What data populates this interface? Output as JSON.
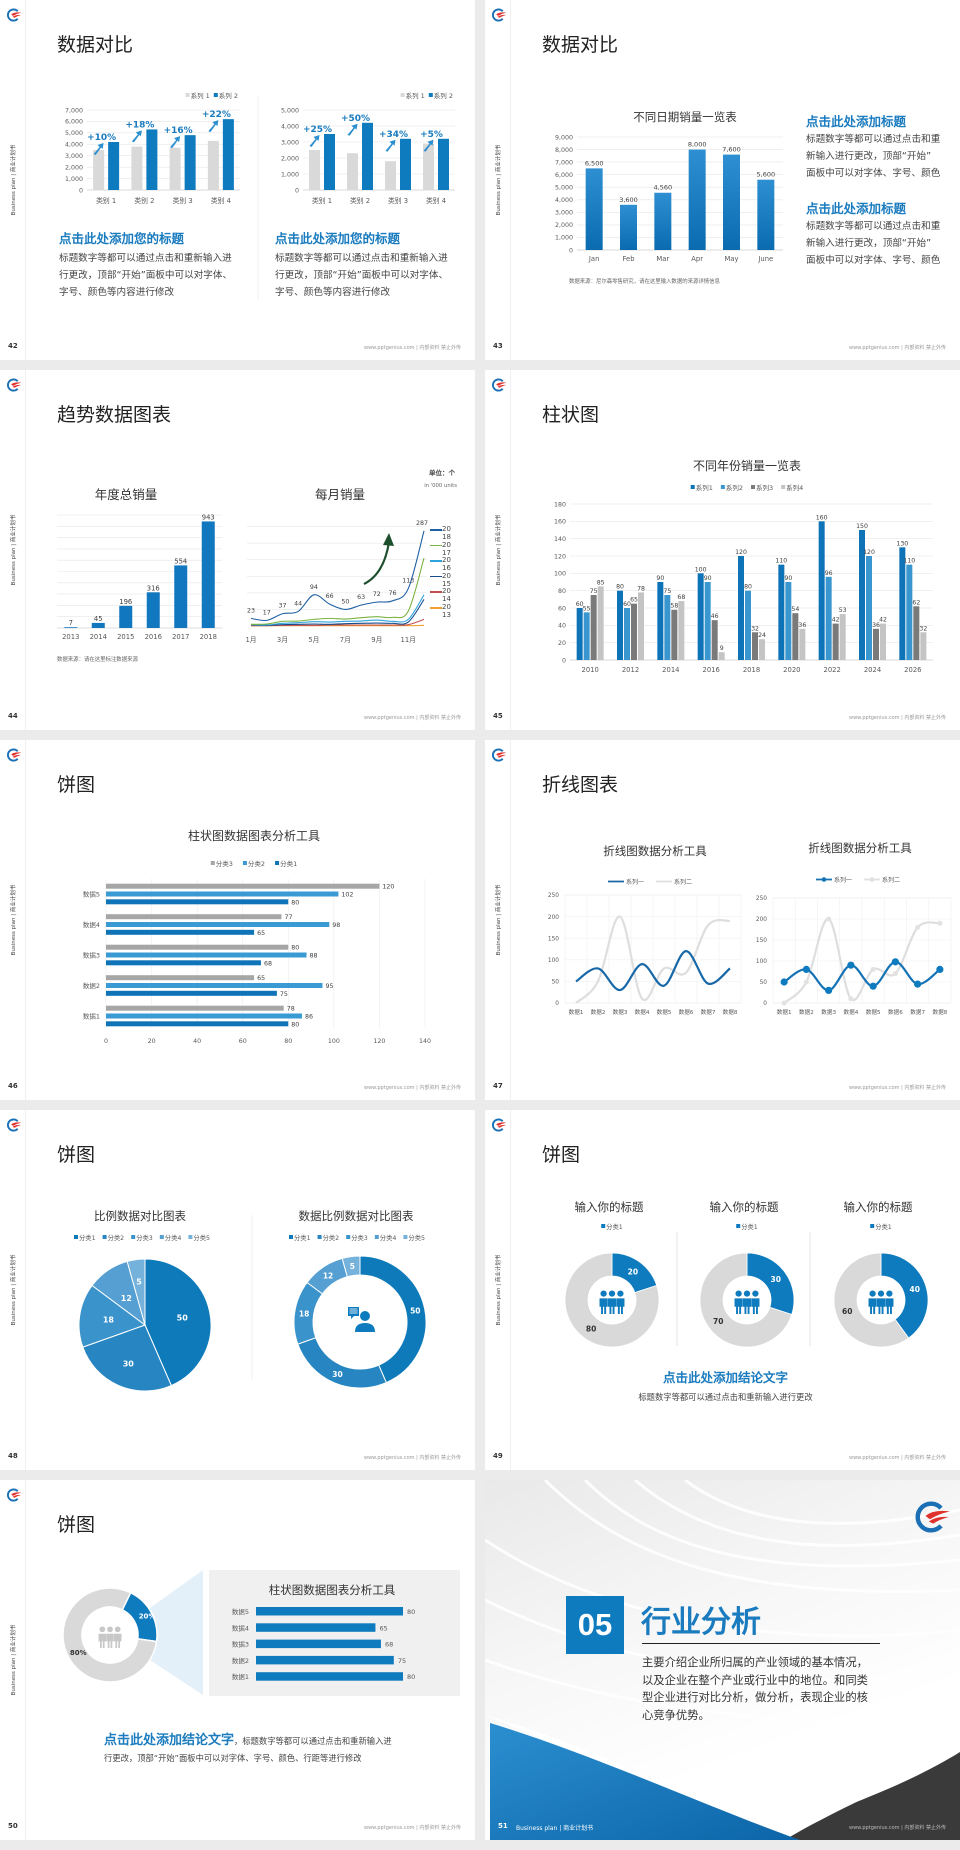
{
  "common": {
    "side_label": "Business plan | 商业计划书",
    "footer": "www.pptgenius.com | 内部资料 禁止外传"
  },
  "colors": {
    "accent": "#0f7bbf",
    "heading_blue": "#1a7bbf",
    "bar_gray": "#d9d9d9",
    "dark": "#3a3a3a"
  },
  "slides": [
    {
      "page": "42",
      "title": "数据对比",
      "blocks": [
        {
          "heading": "点击此处添加您的标题",
          "lines": [
            "标题数字等都可以通过点击和重新输入进",
            "行更改，顶部“开始”面板中可以对字体、",
            "字号、颜色等内容进行修改"
          ]
        },
        {
          "heading": "点击此处添加您的标题",
          "lines": [
            "标题数字等都可以通过点击和重新输入进",
            "行更改，顶部“开始”面板中可以对字体、",
            "字号、颜色等内容进行修改"
          ]
        }
      ]
    },
    {
      "page": "43",
      "title": "数据对比",
      "source": "数据来源：尼尔森零售研究，请在这里输入数据的来源详情信息",
      "blocks": [
        {
          "heading": "点击此处添加标题",
          "lines": [
            "标题数字等都可以通过点击和重",
            "新输入进行更改，顶部“开始”",
            "面板中可以对字体、字号、颜色"
          ]
        },
        {
          "heading": "点击此处添加标题",
          "lines": [
            "标题数字等都可以通过点击和重",
            "新输入进行更改，顶部“开始”",
            "面板中可以对字体、字号、颜色"
          ]
        }
      ]
    },
    {
      "page": "44",
      "title": "趋势数据图表",
      "unit": "单位：个",
      "unit_en": "in '000 units",
      "source": "数据来源：请在这里标注数据来源"
    },
    {
      "page": "45",
      "title": "柱状图"
    },
    {
      "page": "46",
      "title": "饼图"
    },
    {
      "page": "47",
      "title": "折线图表"
    },
    {
      "page": "48",
      "title": "饼图"
    },
    {
      "page": "49",
      "title": "饼图",
      "conclusion": "点击此处添加结论文字",
      "body": "标题数字等都可以通过点击和重新输入进行更改"
    },
    {
      "page": "50",
      "title": "饼图",
      "conclusion": "点击此处添加结论文字",
      "body_1": "，标题数字等都可以通过点击和重新输入进",
      "body_2": "行更改，顶部“开始”面板中可以对字体、字号、颜色、行距等进行修改"
    },
    {
      "page": "51",
      "number": "05",
      "title": "行业分析",
      "lines": [
        "主要介绍企业所归属的产业领域的基本情况，",
        "以及企业在整个产业或行业中的地位。和同类",
        "型企业进行对比分析，做分析，表现企业的核",
        "心竞争优势。"
      ],
      "footer_left": "Business plan | 商业计划书"
    }
  ],
  "chart_data": [
    {
      "type": "bar",
      "categories": [
        "类别 1",
        "类别 2",
        "类别 3",
        "类别 4"
      ],
      "series": [
        {
          "name": "系列 1",
          "values": [
            3500,
            3800,
            3700,
            4300
          ]
        },
        {
          "name": "系列 2",
          "values": [
            4200,
            5300,
            4800,
            6200
          ]
        }
      ],
      "ylim": [
        0,
        7000
      ],
      "yticks": [
        "0",
        "1,000",
        "2,000",
        "3,000",
        "4,000",
        "5,000",
        "6,000",
        "7,000"
      ],
      "annotations": [
        "+10%",
        "+18%",
        "+16%",
        "+22%"
      ],
      "legend": "top-right",
      "grid": true
    },
    {
      "type": "bar",
      "categories": [
        "类别 1",
        "类别 2",
        "类别 3",
        "类别 4"
      ],
      "series": [
        {
          "name": "系列 1",
          "values": [
            2500,
            2300,
            1800,
            2900
          ]
        },
        {
          "name": "系列 2",
          "values": [
            3500,
            4200,
            3200,
            3200
          ]
        }
      ],
      "ylim": [
        0,
        5000
      ],
      "yticks": [
        "0",
        "1,000",
        "2,000",
        "3,000",
        "4,000",
        "5,000"
      ],
      "annotations": [
        "+25%",
        "+50%",
        "+34%",
        "+5%"
      ],
      "legend": "top-right",
      "grid": true
    },
    {
      "type": "bar",
      "title": "不同日期销量一览表",
      "categories": [
        "Jan",
        "Feb",
        "Mar",
        "Apr",
        "May",
        "June"
      ],
      "series": [
        {
          "values": [
            6500,
            3600,
            4560,
            8000,
            7600,
            5600
          ]
        }
      ],
      "data_labels": [
        "6,500",
        "3,600",
        "4,560",
        "8,000",
        "7,600",
        "5,600"
      ],
      "ylim": [
        0,
        9000
      ],
      "yticks": [
        "0",
        "1,000",
        "2,000",
        "3,000",
        "4,000",
        "5,000",
        "6,000",
        "7,000",
        "8,000",
        "9,000"
      ],
      "grid": true
    },
    {
      "type": "bar",
      "title": "年度总销量",
      "categories": [
        "2013",
        "2014",
        "2015",
        "2016",
        "2017",
        "2018"
      ],
      "series": [
        {
          "values": [
            7,
            45,
            196,
            316,
            554,
            943
          ]
        }
      ],
      "ylim": [
        0,
        1000
      ],
      "grid": true
    },
    {
      "type": "line",
      "title": "每月销量",
      "x_labels": [
        "1月",
        "3月",
        "5月",
        "7月",
        "9月",
        "11月"
      ],
      "series": [
        {
          "name": "2018",
          "color": "#1f5fa3",
          "values": [
            23,
            17,
            37,
            44,
            94,
            66,
            50,
            63,
            72,
            76,
            113,
            287
          ]
        },
        {
          "name": "2017",
          "color": "#7cb342",
          "values": [
            5,
            6,
            14,
            15,
            20,
            23,
            21,
            25,
            28,
            26,
            45,
            205
          ]
        },
        {
          "name": "2016",
          "color": "#2ea3dc",
          "values": [
            4,
            3,
            8,
            10,
            13,
            12,
            14,
            15,
            18,
            14,
            20,
            94
          ]
        },
        {
          "name": "2015",
          "color": "#1a4c8c",
          "values": [
            3,
            2,
            4,
            5,
            6,
            5,
            7,
            8,
            9,
            8,
            12,
            80
          ]
        },
        {
          "name": "2014",
          "color": "#c0504d",
          "values": [
            1,
            1,
            2,
            2,
            2,
            3,
            3,
            3,
            3,
            3,
            4,
            20
          ]
        },
        {
          "name": "2013",
          "color": "#f0a030",
          "values": [
            1,
            1,
            1,
            1,
            1,
            1,
            1,
            1,
            1,
            1,
            1,
            2
          ]
        }
      ],
      "ylim": [
        0,
        350
      ],
      "grid": true,
      "legend": "right"
    },
    {
      "type": "bar",
      "title": "不同年份销量一览表",
      "categories": [
        "2010",
        "2012",
        "2014",
        "2016",
        "2018",
        "2020",
        "2022",
        "2024",
        "2026"
      ],
      "series": [
        {
          "name": "系列1",
          "values": [
            60,
            80,
            90,
            100,
            120,
            110,
            160,
            150,
            130
          ]
        },
        {
          "name": "系列2",
          "values": [
            55,
            60,
            75,
            90,
            80,
            90,
            96,
            120,
            110
          ]
        },
        {
          "name": "系列3",
          "values": [
            75,
            65,
            58,
            46,
            32,
            54,
            42,
            36,
            62
          ]
        },
        {
          "name": "系列4",
          "values": [
            85,
            78,
            68,
            9,
            24,
            36,
            53,
            42,
            32
          ]
        }
      ],
      "ylim": [
        0,
        180
      ],
      "yticks": [
        "0",
        "20",
        "40",
        "60",
        "80",
        "100",
        "120",
        "140",
        "160",
        "180"
      ],
      "legend": "top",
      "grid": true
    },
    {
      "type": "bar",
      "orientation": "horizontal",
      "title": "柱状图数据图表分析工具",
      "categories": [
        "数据1",
        "数据2",
        "数据3",
        "数据4",
        "数据5"
      ],
      "series": [
        {
          "name": "分类3",
          "values": [
            78,
            65,
            80,
            77,
            120
          ]
        },
        {
          "name": "分类2",
          "values": [
            86,
            95,
            88,
            98,
            102
          ]
        },
        {
          "name": "分类1",
          "values": [
            80,
            75,
            68,
            65,
            80
          ]
        }
      ],
      "xlim": [
        0,
        140
      ],
      "xticks": [
        "0",
        "20",
        "40",
        "60",
        "80",
        "100",
        "120",
        "140"
      ],
      "legend": "top",
      "grid": true
    },
    {
      "type": "line",
      "title": "折线图数据分析工具",
      "categories": [
        "数据1",
        "数据2",
        "数据3",
        "数据4",
        "数据5",
        "数据6",
        "数据7",
        "数据8"
      ],
      "series": [
        {
          "name": "系列一",
          "values": [
            50,
            80,
            30,
            90,
            40,
            120,
            45,
            80
          ]
        },
        {
          "name": "系列二",
          "values": [
            0,
            50,
            200,
            10,
            80,
            70,
            180,
            190
          ]
        }
      ],
      "ylim": [
        0,
        250
      ],
      "yticks": [
        "0",
        "50",
        "100",
        "150",
        "200",
        "250"
      ],
      "legend": "top",
      "grid": true
    },
    {
      "type": "line",
      "title": "折线图数据分析工具",
      "categories": [
        "数据1",
        "数据2",
        "数据3",
        "数据4",
        "数据5",
        "数据6",
        "数据7",
        "数据8"
      ],
      "series": [
        {
          "name": "系列一",
          "values": [
            50,
            80,
            30,
            90,
            40,
            98,
            45,
            80
          ]
        },
        {
          "name": "系列二",
          "values": [
            0,
            50,
            200,
            10,
            80,
            70,
            180,
            190
          ]
        }
      ],
      "ylim": [
        0,
        250
      ],
      "yticks": [
        "0",
        "50",
        "100",
        "150",
        "200",
        "250"
      ],
      "legend": "top",
      "grid": true,
      "markers": true
    },
    {
      "type": "pie",
      "title": "比例数据对比图表",
      "categories": [
        "分类1",
        "分类2",
        "分类3",
        "分类4",
        "分类5"
      ],
      "values": [
        50,
        30,
        18,
        12,
        5
      ],
      "legend": "top"
    },
    {
      "type": "pie",
      "donut": true,
      "title": "数据比例数据对比图表",
      "categories": [
        "分类1",
        "分类2",
        "分类3",
        "分类4",
        "分类5"
      ],
      "values": [
        50,
        30,
        18,
        12,
        5
      ],
      "legend": "top"
    },
    {
      "type": "pie",
      "donut": true,
      "title": "输入你的标题",
      "legend_label": "分类1",
      "values": [
        20,
        80
      ]
    },
    {
      "type": "pie",
      "donut": true,
      "title": "输入你的标题",
      "legend_label": "分类1",
      "values": [
        30,
        70
      ]
    },
    {
      "type": "pie",
      "donut": true,
      "title": "输入你的标题",
      "legend_label": "分类1",
      "values": [
        40,
        60
      ]
    },
    {
      "type": "pie",
      "donut": true,
      "values": [
        20,
        80
      ],
      "labels": [
        "20%",
        "80%"
      ]
    },
    {
      "type": "bar",
      "orientation": "horizontal",
      "title": "柱状图数据图表分析工具",
      "categories": [
        "数据5",
        "数据4",
        "数据3",
        "数据2",
        "数据1"
      ],
      "series": [
        {
          "values": [
            80,
            65,
            68,
            75,
            80
          ]
        }
      ],
      "xlim": [
        0,
        80
      ]
    }
  ]
}
